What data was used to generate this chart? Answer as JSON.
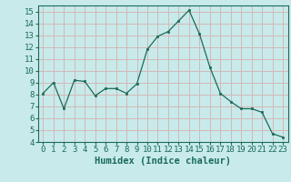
{
  "x": [
    0,
    1,
    2,
    3,
    4,
    5,
    6,
    7,
    8,
    9,
    10,
    11,
    12,
    13,
    14,
    15,
    16,
    17,
    18,
    19,
    20,
    21,
    22,
    23
  ],
  "y": [
    8.1,
    9.0,
    6.8,
    9.2,
    9.1,
    7.9,
    8.5,
    8.5,
    8.1,
    8.9,
    11.8,
    12.9,
    13.3,
    14.2,
    15.1,
    13.1,
    10.3,
    8.1,
    7.4,
    6.8,
    6.8,
    6.5,
    4.7,
    4.4
  ],
  "line_color": "#1a6b5a",
  "marker": "s",
  "marker_size": 2,
  "bg_color": "#c8eaea",
  "grid_color": "#d4b8b8",
  "xlabel": "Humidex (Indice chaleur)",
  "ylim": [
    4,
    15.5
  ],
  "xlim": [
    -0.5,
    23.5
  ],
  "yticks": [
    4,
    5,
    6,
    7,
    8,
    9,
    10,
    11,
    12,
    13,
    14,
    15
  ],
  "xticks": [
    0,
    1,
    2,
    3,
    4,
    5,
    6,
    7,
    8,
    9,
    10,
    11,
    12,
    13,
    14,
    15,
    16,
    17,
    18,
    19,
    20,
    21,
    22,
    23
  ],
  "tick_color": "#1a6b5a",
  "label_color": "#1a6b5a",
  "label_fontsize": 7.5,
  "tick_fontsize": 6.5
}
